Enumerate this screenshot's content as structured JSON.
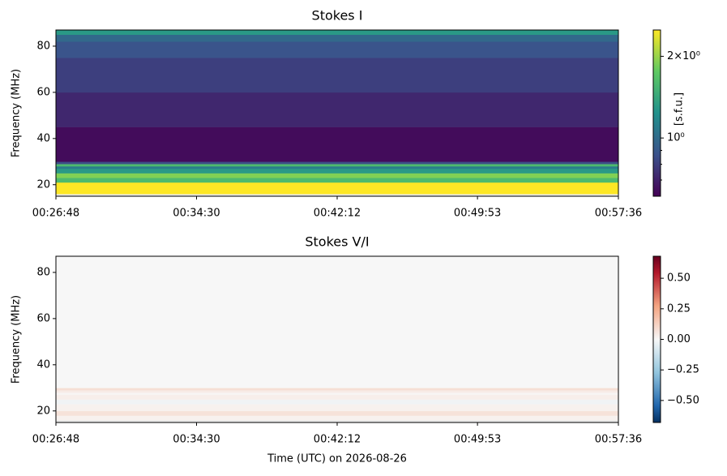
{
  "chart_data": [
    {
      "type": "heatmap",
      "title": "Stokes I",
      "ylabel": "Frequency (MHz)",
      "colorbar_label": "[s.f.u.]",
      "colormap": "viridis",
      "color_scale": "log",
      "xlim": [
        1608,
        3456
      ],
      "xticks": [
        {
          "value": 1608,
          "label": "00:26:48"
        },
        {
          "value": 2070,
          "label": "00:34:30"
        },
        {
          "value": 2532,
          "label": "00:42:12"
        },
        {
          "value": 2993,
          "label": "00:49:53"
        },
        {
          "value": 3456,
          "label": "00:57:36"
        }
      ],
      "ylim": [
        15,
        87
      ],
      "yticks": [
        20,
        40,
        60,
        80
      ],
      "y_edges": [
        16,
        21,
        23,
        25,
        27,
        28,
        29,
        30,
        45,
        60,
        75,
        82,
        85,
        87
      ],
      "values": [
        2.5,
        1.6,
        1.9,
        1.3,
        1.1,
        1.6,
        0.85,
        0.64,
        0.72,
        0.8,
        0.88,
        0.98,
        1.3
      ],
      "clim": [
        0.61,
        2.5
      ],
      "cticks": [
        {
          "value": 2,
          "label": "2×10⁰"
        },
        {
          "value": 1,
          "label": "10⁰"
        }
      ],
      "cminorticks": [
        0.7,
        0.8,
        0.9
      ]
    },
    {
      "type": "heatmap",
      "title": "Stokes V/I",
      "ylabel": "Frequency (MHz)",
      "xlabel": "Time (UTC) on 2026-08-26",
      "colormap": "RdBu_r",
      "color_scale": "linear",
      "xlim": [
        1608,
        3456
      ],
      "xticks": [
        {
          "value": 1608,
          "label": "00:26:48"
        },
        {
          "value": 2070,
          "label": "00:34:30"
        },
        {
          "value": 2532,
          "label": "00:42:12"
        },
        {
          "value": 2993,
          "label": "00:49:53"
        },
        {
          "value": 3456,
          "label": "00:57:36"
        }
      ],
      "ylim": [
        15,
        87
      ],
      "yticks": [
        20,
        40,
        60,
        80
      ],
      "y_edges": [
        16,
        18,
        20,
        23,
        25,
        27,
        28,
        29,
        30,
        87
      ],
      "values": [
        0.02,
        0.07,
        0.02,
        -0.02,
        0.03,
        0.01,
        0.04,
        0.08,
        0.0
      ],
      "clim": [
        -0.68,
        0.68
      ],
      "cticks": [
        {
          "value": 0.5,
          "label": "0.50"
        },
        {
          "value": 0.25,
          "label": "0.25"
        },
        {
          "value": 0,
          "label": "0.00"
        },
        {
          "value": -0.25,
          "label": "−0.25"
        },
        {
          "value": -0.5,
          "label": "−0.50"
        }
      ]
    }
  ]
}
